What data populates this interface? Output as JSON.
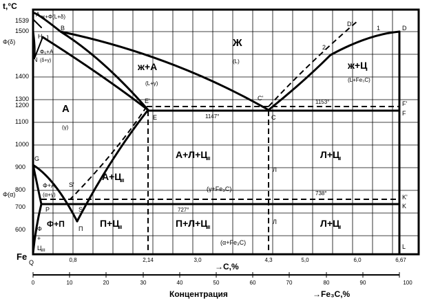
{
  "y_axis": {
    "title": "t,°C",
    "ticks": [
      "1539",
      "1500",
      "1400",
      "1300",
      "1200",
      "1100",
      "1000",
      "900",
      "800",
      "700",
      "600"
    ]
  },
  "x_axis": {
    "ticks": [
      "0,8",
      "2,14",
      "3,0",
      "4,3",
      "5,0",
      "6,0",
      "6,67"
    ],
    "label": "→C,%"
  },
  "conc_axis": {
    "ticks": [
      "0",
      "10",
      "20",
      "30",
      "40",
      "50",
      "60",
      "70",
      "80",
      "90",
      "100"
    ],
    "title": "Концентрация",
    "label": "→Fe₃C,%"
  },
  "phases": {
    "liquid": "Ж",
    "liquid_sub": "(L)",
    "liq_aus": "ж+А",
    "liq_aus_sub": "(L+γ)",
    "liq_cem": "ж+Ц",
    "liq_cem_sub": "(L+Fe₃C)",
    "aus": "А",
    "aus_sub": "(γ)",
    "aus_cem": "А+Ц",
    "aus_cem_sub": "II",
    "ald": "А+Л+Ц",
    "ald_sub": "II",
    "ald_cem": "Л+Ц",
    "ald_cem_sub": "I",
    "aus_fe3c": "(γ+Fe₃C)",
    "pearl_cem": "П+Ц",
    "pearl_cem_sub": "II",
    "pld": "П+Л+Ц",
    "pld_sub": "II",
    "lp_cem": "Л+Ц",
    "lp_cem_sub": "I",
    "ferr_fe3c": "(α+Fe₃C)",
    "ferr_pearl": "Ф+П",
    "ferr_aus": "Ф+А",
    "ferr_aus_sub": "(α+γ)",
    "delta_aus": "Ф₅+А",
    "delta_aus_sub": "(δ+γ)",
    "liq_delta": "ж+Ф(L+δ)",
    "delta": "Φ(δ)",
    "alpha": "Φ(α)",
    "ledeburite": "Л",
    "pearlite": "П"
  },
  "points": {
    "A": "A",
    "B": "B",
    "H": "H",
    "J": "J",
    "N": "N",
    "G": "G",
    "P": "P",
    "S": "S",
    "S2": "S'",
    "Q": "Q",
    "E": "E",
    "E2": "E'",
    "C": "C",
    "C2": "C'",
    "D": "D",
    "D2": "D'",
    "F": "F",
    "F2": "F'",
    "K": "K",
    "K2": "K'",
    "L": "L"
  },
  "temps": {
    "eutectic": "1147°",
    "eutectic_stable": "1153°",
    "eutectoid": "727°",
    "eutectoid_stable": "738°"
  },
  "curve_labels": {
    "one": "1",
    "two": "2"
  },
  "fe": "Fe",
  "ferr_col": [
    "Ф",
    "+",
    "Ц"
  ],
  "ferr_sub": "III"
}
